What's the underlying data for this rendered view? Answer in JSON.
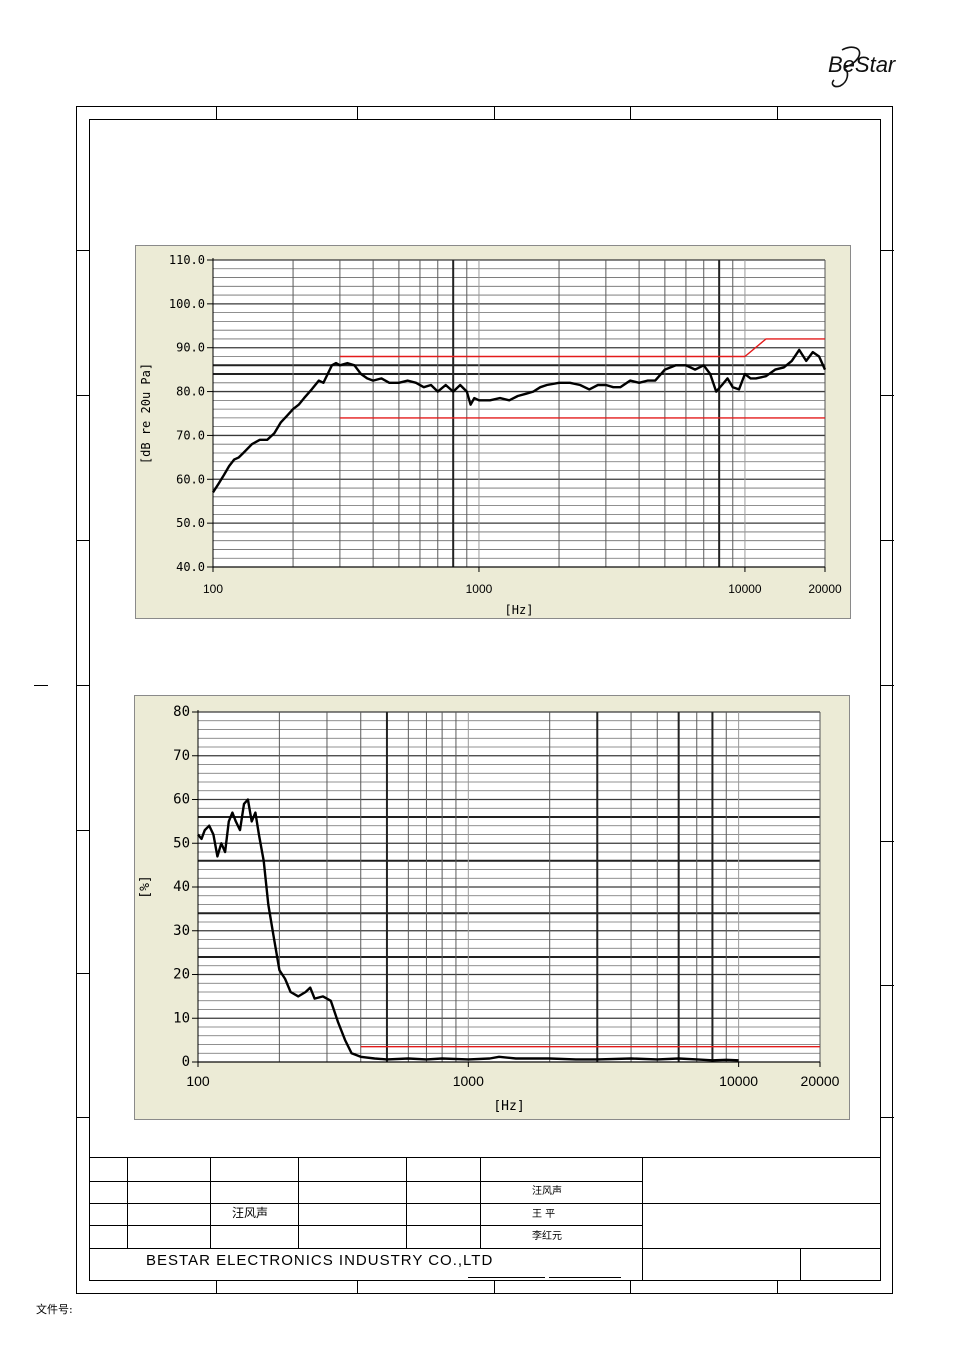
{
  "logo": {
    "text": "BeStar"
  },
  "title_block": {
    "name_a": "汪风声",
    "name_b": "汪风声",
    "name_c": "王 平",
    "name_d": "李红元",
    "company": "BESTAR ELECTRONICS INDUSTRY CO.,LTD",
    "doc_number_label": "文件号:"
  },
  "chart_data": [
    {
      "type": "line",
      "title": "",
      "xlabel": "[Hz]",
      "ylabel": "[dB re 20u Pa]",
      "xscale": "log",
      "xlim": [
        100,
        20000
      ],
      "ylim": [
        40,
        110
      ],
      "x_ticks": [
        "100",
        "1000",
        "10000",
        "20000"
      ],
      "y_ticks": [
        "40.0",
        "50.0",
        "60.0",
        "70.0",
        "80.0",
        "90.0",
        "100.0",
        "110.0"
      ],
      "grid": true,
      "series": [
        {
          "name": "",
          "color": "#000000",
          "x": [
            100,
            105,
            110,
            115,
            120,
            125,
            130,
            140,
            150,
            160,
            170,
            180,
            190,
            200,
            210,
            220,
            235,
            250,
            260,
            270,
            280,
            290,
            300,
            320,
            340,
            360,
            380,
            400,
            430,
            460,
            500,
            540,
            580,
            620,
            660,
            700,
            750,
            800,
            850,
            900,
            930,
            960,
            1000,
            1100,
            1200,
            1300,
            1400,
            1500,
            1600,
            1700,
            1800,
            2000,
            2200,
            2400,
            2600,
            2800,
            3000,
            3200,
            3400,
            3700,
            4000,
            4300,
            4600,
            5000,
            5500,
            6000,
            6500,
            7000,
            7400,
            7800,
            8200,
            8600,
            9000,
            9500,
            10000,
            10500,
            11000,
            12000,
            13000,
            14000,
            15000,
            16000,
            17000,
            18000,
            19000,
            20000
          ],
          "y": [
            57,
            59,
            61,
            63,
            64.5,
            65,
            66,
            68,
            69,
            69,
            70.5,
            73,
            74.5,
            76,
            77,
            78.5,
            80.5,
            82.5,
            82,
            84,
            86,
            86.5,
            86,
            86.5,
            86,
            84,
            83,
            82.5,
            83,
            82,
            82,
            82.5,
            82,
            81,
            81.5,
            80,
            81.5,
            80,
            81.5,
            80,
            77,
            78.5,
            78,
            78,
            78.5,
            78,
            79,
            79.5,
            80,
            81,
            81.5,
            82,
            82,
            81.5,
            80.5,
            81.5,
            81.5,
            81,
            81,
            82.5,
            82,
            82.5,
            82.5,
            85,
            86,
            86,
            85,
            86,
            84,
            80,
            81.5,
            83,
            81,
            80.5,
            84,
            83,
            83,
            83.5,
            85,
            85.5,
            87,
            89.5,
            87,
            89,
            88,
            85
          ]
        },
        {
          "name": "",
          "color": "#e31b1b",
          "x": [
            300,
            10000,
            12000,
            20000
          ],
          "y": [
            88,
            88,
            92,
            92
          ]
        },
        {
          "name": "",
          "color": "#e31b1b",
          "x": [
            300,
            20000
          ],
          "y": [
            74,
            74
          ]
        }
      ]
    },
    {
      "type": "line",
      "title": "",
      "xlabel": "[Hz]",
      "ylabel": "[%]",
      "xscale": "log",
      "xlim": [
        100,
        20000
      ],
      "ylim": [
        0,
        80
      ],
      "x_ticks": [
        "100",
        "1000",
        "10000",
        "20000"
      ],
      "y_ticks": [
        "0",
        "10",
        "20",
        "30",
        "40",
        "50",
        "60",
        "70",
        "80"
      ],
      "grid": true,
      "series": [
        {
          "name": "",
          "color": "#000000",
          "x": [
            100,
            103,
            106,
            110,
            114,
            118,
            122,
            126,
            130,
            134,
            138,
            143,
            148,
            153,
            158,
            163,
            168,
            175,
            182,
            190,
            200,
            210,
            220,
            235,
            250,
            260,
            270,
            290,
            310,
            330,
            350,
            370,
            400,
            450,
            500,
            600,
            700,
            800,
            1000,
            1200,
            1300,
            1500,
            2000,
            2500,
            3000,
            4000,
            5000,
            6000,
            7000,
            8000,
            9000,
            10000
          ],
          "y": [
            52,
            51,
            53,
            54,
            52,
            47,
            50,
            48,
            55,
            57,
            55,
            53,
            59,
            60,
            55,
            57,
            52,
            46,
            36,
            29,
            21,
            19,
            16,
            15,
            16,
            17,
            14.5,
            15,
            14,
            9,
            5,
            2,
            1.2,
            0.8,
            0.6,
            0.8,
            0.6,
            0.8,
            0.6,
            0.8,
            1.2,
            0.8,
            0.8,
            0.6,
            0.6,
            0.8,
            0.6,
            0.8,
            0.6,
            0.4,
            0.5,
            0.4
          ]
        },
        {
          "name": "",
          "color": "#e31b1b",
          "x": [
            400,
            20000
          ],
          "y": [
            3.5,
            3.5
          ]
        }
      ]
    }
  ]
}
